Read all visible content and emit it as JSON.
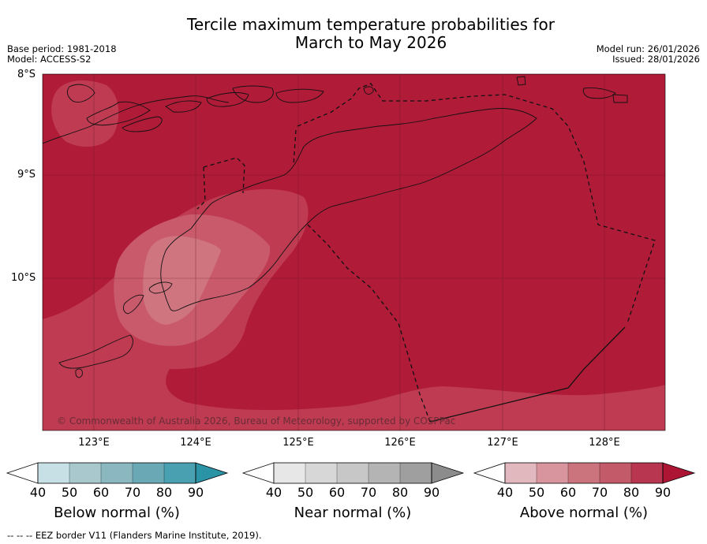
{
  "title": {
    "line1": "Tercile maximum temperature probabilities for",
    "line2": "March to May 2026"
  },
  "meta": {
    "base_period": "Base period: 1981-2018",
    "model": "Model: ACCESS-S2",
    "model_run": "Model run: 26/01/2026",
    "issued": "Issued: 28/01/2026"
  },
  "map": {
    "lat_labels": [
      "8°S",
      "9°S",
      "10°S"
    ],
    "lon_labels": [
      "123°E",
      "124°E",
      "125°E",
      "126°E",
      "127°E",
      "128°E"
    ],
    "copyright": "© Commonwealth of Australia 2026, Bureau of Meteorology, supported by COSPPac",
    "colors": {
      "above_90": "#b01b38",
      "above_80": "#bf3b52",
      "above_70": "#c95a6b",
      "above_60": "#cf7580"
    }
  },
  "colorbars": [
    {
      "title": "Below normal (%)",
      "ticks": [
        "40",
        "50",
        "60",
        "70",
        "80",
        "90"
      ],
      "colors": [
        "#ffffff",
        "#c7e0e6",
        "#a8c8cd",
        "#8ab7c0",
        "#6aa8b5",
        "#48a0b0",
        "#2a94a6"
      ]
    },
    {
      "title": "Near normal (%)",
      "ticks": [
        "40",
        "50",
        "60",
        "70",
        "80",
        "90"
      ],
      "colors": [
        "#ffffff",
        "#e7e7e7",
        "#d7d7d7",
        "#c7c7c7",
        "#b4b4b4",
        "#9f9f9f",
        "#8c8c8c"
      ]
    },
    {
      "title": "Above normal (%)",
      "ticks": [
        "40",
        "50",
        "60",
        "70",
        "80",
        "90"
      ],
      "colors": [
        "#ffffff",
        "#e2b8bf",
        "#d8959e",
        "#cc747e",
        "#c35a69",
        "#b93650",
        "#ad1535"
      ]
    }
  ],
  "footnote": "--  --  -- EEZ border V11 (Flanders Marine Institute, 2019)."
}
